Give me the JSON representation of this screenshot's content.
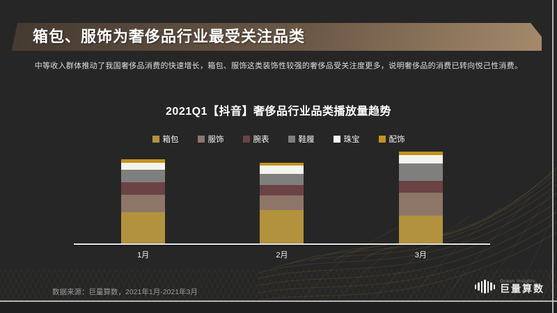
{
  "slide": {
    "title": "箱包、服饰为奢侈品行业最受关注品类",
    "subtitle": "中等收入群体推动了我国奢侈品消费的快速增长，箱包、服饰这类装饰性较强的奢侈品受关注度更多，说明奢侈品的消费已转向悦己性消费。",
    "footer_source": "数据来源：巨量算数，2021年1月-2021年3月",
    "brand": {
      "name_en": "Ocean Insights",
      "name_cn": "巨量算数"
    },
    "colors": {
      "background": "#262626",
      "banner_gradient_start": "#453a31",
      "banner_gradient_end": "#a58a6b",
      "axis_line": "#e3e3e3",
      "mesh_accent": "#bd9347"
    }
  },
  "chart_data": {
    "type": "bar",
    "stacked": true,
    "title": "2021Q1【抖音】奢侈品行业品类播放量趋势",
    "categories": [
      "1月",
      "2月",
      "3月"
    ],
    "series": [
      {
        "name": "箱包",
        "color": "#b2923d",
        "values": [
          46,
          49,
          41
        ]
      },
      {
        "name": "服饰",
        "color": "#8d7668",
        "values": [
          25,
          21,
          33
        ]
      },
      {
        "name": "腕表",
        "color": "#6b4344",
        "values": [
          18,
          15,
          17
        ]
      },
      {
        "name": "鞋履",
        "color": "#7f7f7d",
        "values": [
          18,
          16,
          25
        ]
      },
      {
        "name": "珠宝",
        "color": "#f5f3ee",
        "values": [
          10,
          12,
          12
        ]
      },
      {
        "name": "配饰",
        "color": "#c4921d",
        "values": [
          5,
          4,
          5
        ]
      }
    ],
    "value_axis_shown": false,
    "value_units": "relative play-volume index (no numeric axis labels shown)",
    "ylim": [
      0,
      150
    ],
    "legend_position": "top",
    "grid": false,
    "stack_order_bottom_to_top": [
      "箱包",
      "服饰",
      "腕表",
      "鞋履",
      "珠宝",
      "配饰"
    ]
  }
}
